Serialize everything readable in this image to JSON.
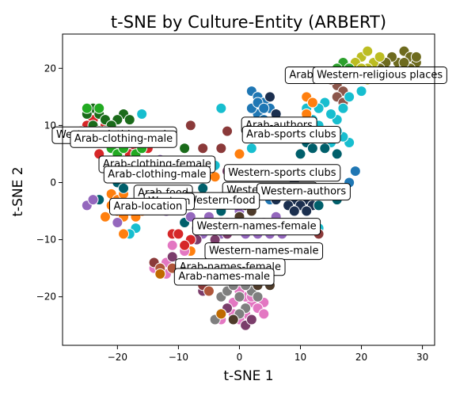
{
  "chart_data": {
    "type": "scatter",
    "title": "t-SNE by Culture-Entity (ARBERT)",
    "xlabel": "t-SNE 1",
    "ylabel": "t-SNE 2",
    "xlim": [
      -29,
      32
    ],
    "ylim": [
      -28.5,
      26
    ],
    "xticks": [
      -20,
      -10,
      0,
      10,
      20,
      30
    ],
    "yticks": [
      -20,
      -10,
      0,
      10,
      20
    ],
    "grid": false,
    "annotations": [
      {
        "text": "Arab-religious places",
        "x": 17,
        "y": 19
      },
      {
        "text": "Western-religious places",
        "x": 23,
        "y": 19
      },
      {
        "text": "Western-clothing-male",
        "x": -20.5,
        "y": 8.5
      },
      {
        "text": "Arab-clothing-male (top)",
        "x": -19,
        "y": 7.8
      },
      {
        "text": "Arab-authors",
        "x": 6.5,
        "y": 10.2
      },
      {
        "text": "Arab-sports clubs",
        "x": 8.5,
        "y": 8.6
      },
      {
        "text": "Arab-clothing-female",
        "x": -13.5,
        "y": 3.4
      },
      {
        "text": "Arab-clothing-male",
        "x": -13.5,
        "y": 1.6
      },
      {
        "text": "Western-sports clubs",
        "x": 7,
        "y": 1.9
      },
      {
        "text": "Western-location",
        "x": 5,
        "y": -1.2
      },
      {
        "text": "Western-authors",
        "x": 10.5,
        "y": -1.4
      },
      {
        "text": "Arab-food",
        "x": -12.5,
        "y": -1.7
      },
      {
        "text": "Western-food",
        "x": -3,
        "y": -3
      },
      {
        "text": "Western (partial)",
        "x": -11.5,
        "y": -3.1
      },
      {
        "text": "Arab-location (partial)",
        "x": -15,
        "y": -4
      },
      {
        "text": "Western-names-female",
        "x": 2.8,
        "y": -7.5
      },
      {
        "text": "Western-names-male",
        "x": 4,
        "y": -11.8
      },
      {
        "text": "Arab-names-female",
        "x": -1.5,
        "y": -14.6
      },
      {
        "text": "Arab-names-male",
        "x": -2.5,
        "y": -16.3
      }
    ],
    "series": [
      {
        "color": "#6e6b1f",
        "points": [
          [
            27,
            23
          ],
          [
            28,
            22
          ],
          [
            26,
            21
          ],
          [
            25,
            22
          ],
          [
            29,
            21
          ],
          [
            27,
            20
          ],
          [
            24,
            21
          ],
          [
            28,
            20
          ],
          [
            26,
            19
          ],
          [
            23,
            20
          ],
          [
            29,
            22
          ],
          [
            27,
            21
          ]
        ]
      },
      {
        "color": "#bcbd22",
        "points": [
          [
            20,
            22
          ],
          [
            21,
            23
          ],
          [
            22,
            21
          ],
          [
            19,
            21
          ],
          [
            21,
            20
          ],
          [
            22,
            19
          ],
          [
            20,
            20
          ],
          [
            23,
            22
          ],
          [
            21,
            18
          ]
        ]
      },
      {
        "color": "#2ca02c",
        "points": [
          [
            17,
            21
          ],
          [
            18,
            20
          ],
          [
            17,
            19
          ],
          [
            16,
            20
          ]
        ]
      },
      {
        "color": "#8c564b",
        "points": [
          [
            16,
            17
          ],
          [
            17,
            16
          ],
          [
            15,
            18
          ],
          [
            16,
            15
          ],
          [
            17,
            14
          ]
        ]
      },
      {
        "color": "#17becf",
        "points": [
          [
            20,
            16
          ],
          [
            18,
            15
          ],
          [
            17,
            13
          ],
          [
            16,
            11
          ],
          [
            15,
            12
          ],
          [
            14,
            14
          ],
          [
            13,
            13
          ],
          [
            12,
            11
          ],
          [
            11,
            13
          ],
          [
            14,
            9
          ],
          [
            13,
            10
          ],
          [
            18,
            7
          ],
          [
            17,
            8
          ],
          [
            15,
            7
          ],
          [
            16,
            9
          ],
          [
            -3,
            13
          ],
          [
            -16,
            12
          ],
          [
            2,
            6
          ],
          [
            -4,
            3
          ],
          [
            -17,
            -8
          ],
          [
            -20,
            -7
          ],
          [
            -18,
            -9
          ],
          [
            -5,
            -17
          ],
          [
            -1,
            -17
          ],
          [
            13,
            -8
          ]
        ]
      },
      {
        "color": "#1f77b4",
        "points": [
          [
            2,
            16
          ],
          [
            3,
            15
          ],
          [
            4,
            14
          ],
          [
            5,
            13
          ],
          [
            3,
            12
          ],
          [
            4,
            11
          ],
          [
            6,
            12
          ],
          [
            5,
            10
          ],
          [
            2,
            13
          ],
          [
            3,
            14
          ],
          [
            5,
            15
          ],
          [
            6,
            11
          ],
          [
            4,
            13
          ],
          [
            19,
            2
          ],
          [
            18,
            0
          ],
          [
            2,
            -1
          ],
          [
            4,
            -2
          ],
          [
            5,
            -3
          ],
          [
            1,
            -1
          ]
        ]
      },
      {
        "color": "#ff7f0e",
        "points": [
          [
            11,
            15
          ],
          [
            12,
            14
          ],
          [
            11,
            12
          ],
          [
            9,
            9
          ],
          [
            8,
            8
          ],
          [
            10,
            10
          ],
          [
            -21,
            -2
          ],
          [
            -20,
            -3
          ],
          [
            -19,
            -2
          ],
          [
            -20,
            -5
          ],
          [
            -21,
            -4
          ],
          [
            -22,
            -6
          ],
          [
            -19,
            -6
          ],
          [
            -16,
            -5
          ],
          [
            -17,
            -6
          ],
          [
            -18,
            -4
          ],
          [
            -8,
            -12
          ],
          [
            -19,
            -9
          ],
          [
            0,
            5
          ],
          [
            -4,
            1
          ]
        ]
      },
      {
        "color": "#1b2f4f",
        "points": [
          [
            5,
            15
          ],
          [
            6,
            12
          ],
          [
            9,
            0
          ],
          [
            8,
            -1
          ],
          [
            10,
            -1
          ],
          [
            12,
            -2
          ],
          [
            11,
            -3
          ],
          [
            9,
            -3
          ],
          [
            10,
            -4
          ],
          [
            12,
            -4
          ],
          [
            11,
            -5
          ],
          [
            8,
            -4
          ],
          [
            7,
            -2
          ],
          [
            13,
            -1
          ],
          [
            6,
            -3
          ],
          [
            9,
            -5
          ]
        ]
      },
      {
        "color": "#005f6b",
        "points": [
          [
            11,
            7
          ],
          [
            13,
            8
          ],
          [
            14,
            6
          ],
          [
            16,
            5
          ],
          [
            12,
            6
          ],
          [
            10,
            5
          ],
          [
            -20,
            0
          ],
          [
            -23,
            -3
          ],
          [
            -19,
            -1
          ],
          [
            -6,
            -1
          ],
          [
            -9,
            -7
          ],
          [
            13,
            -4
          ],
          [
            -3,
            -5
          ],
          [
            16,
            -3
          ],
          [
            6,
            -1
          ]
        ]
      },
      {
        "color": "#9467bd",
        "points": [
          [
            0,
            -5
          ],
          [
            -2,
            -7
          ],
          [
            -4,
            -8
          ],
          [
            -6,
            -9
          ],
          [
            -8,
            -6
          ],
          [
            -5,
            -6
          ],
          [
            -3,
            -9
          ],
          [
            2,
            -8
          ],
          [
            4,
            -7
          ],
          [
            6,
            -6
          ],
          [
            1,
            -9
          ],
          [
            3,
            -9
          ],
          [
            -1,
            -8
          ],
          [
            5,
            -9
          ],
          [
            8,
            -8
          ],
          [
            7,
            -9
          ],
          [
            -7,
            -8
          ],
          [
            -25,
            -4
          ],
          [
            -24,
            -3
          ],
          [
            -20,
            -7
          ],
          [
            -13,
            4
          ],
          [
            -14,
            3
          ],
          [
            -12,
            -5
          ]
        ]
      },
      {
        "color": "#e377c2",
        "points": [
          [
            -9,
            -12
          ],
          [
            -11,
            -11
          ],
          [
            -12,
            -14
          ],
          [
            -13,
            -15
          ],
          [
            -10,
            -15
          ],
          [
            -8,
            -16
          ],
          [
            -14,
            -15
          ],
          [
            -12,
            -16
          ],
          [
            -11,
            -13
          ],
          [
            -1,
            -21
          ],
          [
            2,
            -21
          ],
          [
            1,
            -20
          ],
          [
            4,
            -21
          ],
          [
            0,
            -19
          ],
          [
            -1,
            -23
          ],
          [
            3,
            -22
          ],
          [
            1,
            -23
          ],
          [
            -3,
            -24
          ],
          [
            0,
            -24
          ],
          [
            2,
            -20
          ],
          [
            4,
            -23
          ]
        ]
      },
      {
        "color": "#7f7f7f",
        "points": [
          [
            -13,
            -16
          ],
          [
            -9,
            -17
          ],
          [
            -3,
            -20
          ],
          [
            -2,
            -19
          ],
          [
            0,
            -20
          ],
          [
            1,
            -22
          ],
          [
            2,
            -19
          ],
          [
            -1,
            -18
          ],
          [
            3,
            -20
          ],
          [
            -4,
            -24
          ],
          [
            0,
            -23
          ],
          [
            1,
            -18
          ]
        ]
      },
      {
        "color": "#7b3d6b",
        "points": [
          [
            -4,
            -10
          ],
          [
            -2,
            -9
          ],
          [
            -7,
            -10
          ],
          [
            -3,
            -7
          ],
          [
            0,
            -2
          ],
          [
            2,
            -3
          ],
          [
            -1,
            -3
          ],
          [
            5,
            -13
          ],
          [
            7,
            -12
          ],
          [
            -2,
            -22
          ],
          [
            1,
            -25
          ],
          [
            -6,
            -19
          ],
          [
            2,
            -24
          ],
          [
            -2,
            2
          ],
          [
            -11,
            -13
          ]
        ]
      },
      {
        "color": "#4e3b2a",
        "points": [
          [
            -1,
            -2
          ],
          [
            1,
            -4
          ],
          [
            2,
            -5
          ],
          [
            -3,
            -3
          ],
          [
            0,
            -6
          ],
          [
            3,
            -15
          ],
          [
            5,
            -16
          ],
          [
            4,
            -14
          ],
          [
            6,
            -15
          ],
          [
            3,
            -18
          ],
          [
            5,
            -18
          ],
          [
            -1,
            -24
          ],
          [
            -2,
            -3
          ],
          [
            4,
            -17
          ]
        ]
      },
      {
        "color": "#d62728",
        "points": [
          [
            -24,
            11
          ],
          [
            -25,
            10
          ],
          [
            -26,
            9
          ],
          [
            -23,
            8
          ],
          [
            -22,
            10
          ],
          [
            -21,
            9
          ],
          [
            -24,
            7
          ],
          [
            -20,
            8
          ],
          [
            -22,
            7
          ],
          [
            -23,
            5
          ],
          [
            -17,
            6
          ],
          [
            -18,
            5
          ],
          [
            -15,
            6
          ],
          [
            -11,
            -9
          ],
          [
            -10,
            -9
          ],
          [
            -8,
            -10
          ],
          [
            -18,
            -4
          ],
          [
            -9,
            -11
          ],
          [
            -3,
            -3
          ]
        ]
      },
      {
        "color": "#1a6b1a",
        "points": [
          [
            -24,
            13
          ],
          [
            -25,
            12
          ],
          [
            -23,
            12
          ],
          [
            -22,
            11
          ],
          [
            -24,
            10
          ],
          [
            -19,
            12
          ],
          [
            -20,
            11
          ],
          [
            -21,
            10
          ],
          [
            -18,
            11
          ],
          [
            -9,
            6
          ],
          [
            -23,
            9
          ]
        ]
      },
      {
        "color": "#22aa22",
        "points": [
          [
            -22,
            9
          ],
          [
            -21,
            6
          ],
          [
            -20,
            5
          ],
          [
            -19,
            6
          ],
          [
            -17,
            5
          ],
          [
            -16,
            6
          ],
          [
            -23,
            13
          ],
          [
            -25,
            13
          ]
        ]
      },
      {
        "color": "#8b3a3a",
        "points": [
          [
            -6,
            6
          ],
          [
            -8,
            10
          ],
          [
            -2,
            9
          ],
          [
            -3,
            6
          ],
          [
            -14,
            -14
          ],
          [
            -6,
            -18
          ],
          [
            13,
            -9
          ]
        ]
      },
      {
        "color": "#b0563a",
        "points": [
          [
            -13,
            -15
          ],
          [
            -2,
            -16
          ],
          [
            -5,
            -19
          ],
          [
            -3,
            -23
          ],
          [
            -11,
            -15
          ]
        ]
      },
      {
        "color": "#c06a00",
        "points": [
          [
            -3,
            -23
          ],
          [
            -13,
            -16
          ]
        ]
      }
    ]
  }
}
